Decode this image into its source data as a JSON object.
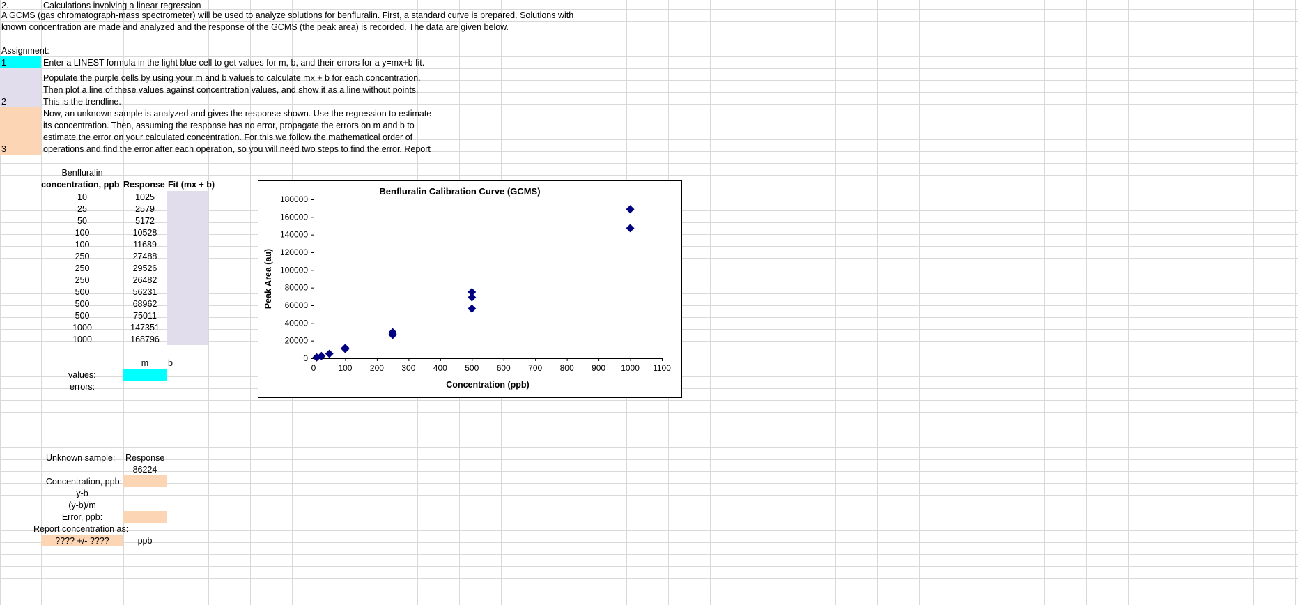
{
  "colors": {
    "light_blue": "#00ffff",
    "purple": "#e1dded",
    "orange": "#fcd5b4",
    "grid": "#d9d9d9",
    "marker": "#000080"
  },
  "header": {
    "number": "2.",
    "title": "Calculations involving a linear regression",
    "desc_line1": "A GCMS (gas chromatograph-mass spectrometer) will be used to analyze solutions for benfluralin. First, a standard curve is prepared. Solutions with",
    "desc_line2": "known concentration are made and analyzed and the response of the GCMS (the peak area) is recorded. The data are given below."
  },
  "assignment": {
    "label": "Assignment:",
    "step1_num": "1",
    "step1_text": "Enter a LINEST formula in the light blue cell to get values for m, b, and their errors for a y=mx+b fit.",
    "step2_num": "2",
    "step2_lines": [
      "Populate the purple cells by using your m and b values to calculate mx + b for each concentration.",
      "Then plot a line of these values against concentration values, and show it as a line without points.",
      "This is the trendline."
    ],
    "step3_num": "3",
    "step3_lines": [
      "Now, an unknown sample is analyzed and gives the response shown. Use the regression to estimate",
      "its concentration. Then, assuming the response has no error, propagate the errors on m and b to",
      "estimate the error on your calculated concentration. For this we follow the mathematical order of",
      "operations and find the error after each operation, so you will need two steps to find the error. Report"
    ]
  },
  "table": {
    "header_top": "Benfluralin",
    "col1": "concentration, ppb",
    "col2": "Response",
    "col3": "Fit (mx + b)",
    "rows": [
      {
        "conc": "10",
        "resp": "1025"
      },
      {
        "conc": "25",
        "resp": "2579"
      },
      {
        "conc": "50",
        "resp": "5172"
      },
      {
        "conc": "100",
        "resp": "10528"
      },
      {
        "conc": "100",
        "resp": "11689"
      },
      {
        "conc": "250",
        "resp": "27488"
      },
      {
        "conc": "250",
        "resp": "29526"
      },
      {
        "conc": "250",
        "resp": "26482"
      },
      {
        "conc": "500",
        "resp": "56231"
      },
      {
        "conc": "500",
        "resp": "68962"
      },
      {
        "conc": "500",
        "resp": "75011"
      },
      {
        "conc": "1000",
        "resp": "147351"
      },
      {
        "conc": "1000",
        "resp": "168796"
      }
    ]
  },
  "regression": {
    "m_label": "m",
    "b_label": "b",
    "values_label": "values:",
    "errors_label": "errors:"
  },
  "unknown": {
    "label": "Unknown sample:",
    "response_header": "Response",
    "response_value": "86224",
    "conc_label": "Concentration, ppb:",
    "yb_label": "y-b",
    "ybm_label": "(y-b)/m",
    "error_label": "Error, ppb:",
    "report_label": "Report concentration as:",
    "report_value": "???? +/- ????",
    "unit": "ppb"
  },
  "chart_data": {
    "type": "scatter",
    "title": "Benfluralin Calibration Curve (GCMS)",
    "xlabel": "Concentration (ppb)",
    "ylabel": "Peak Area (au)",
    "xlim": [
      0,
      1100
    ],
    "ylim": [
      0,
      180000
    ],
    "xticks": [
      0,
      100,
      200,
      300,
      400,
      500,
      600,
      700,
      800,
      900,
      1000,
      1100
    ],
    "yticks": [
      0,
      20000,
      40000,
      60000,
      80000,
      100000,
      120000,
      140000,
      160000,
      180000
    ],
    "grid": false,
    "marker": "diamond",
    "x": [
      10,
      25,
      50,
      100,
      100,
      250,
      250,
      250,
      500,
      500,
      500,
      1000,
      1000
    ],
    "y": [
      1025,
      2579,
      5172,
      10528,
      11689,
      27488,
      29526,
      26482,
      56231,
      68962,
      75011,
      147351,
      168796
    ]
  }
}
